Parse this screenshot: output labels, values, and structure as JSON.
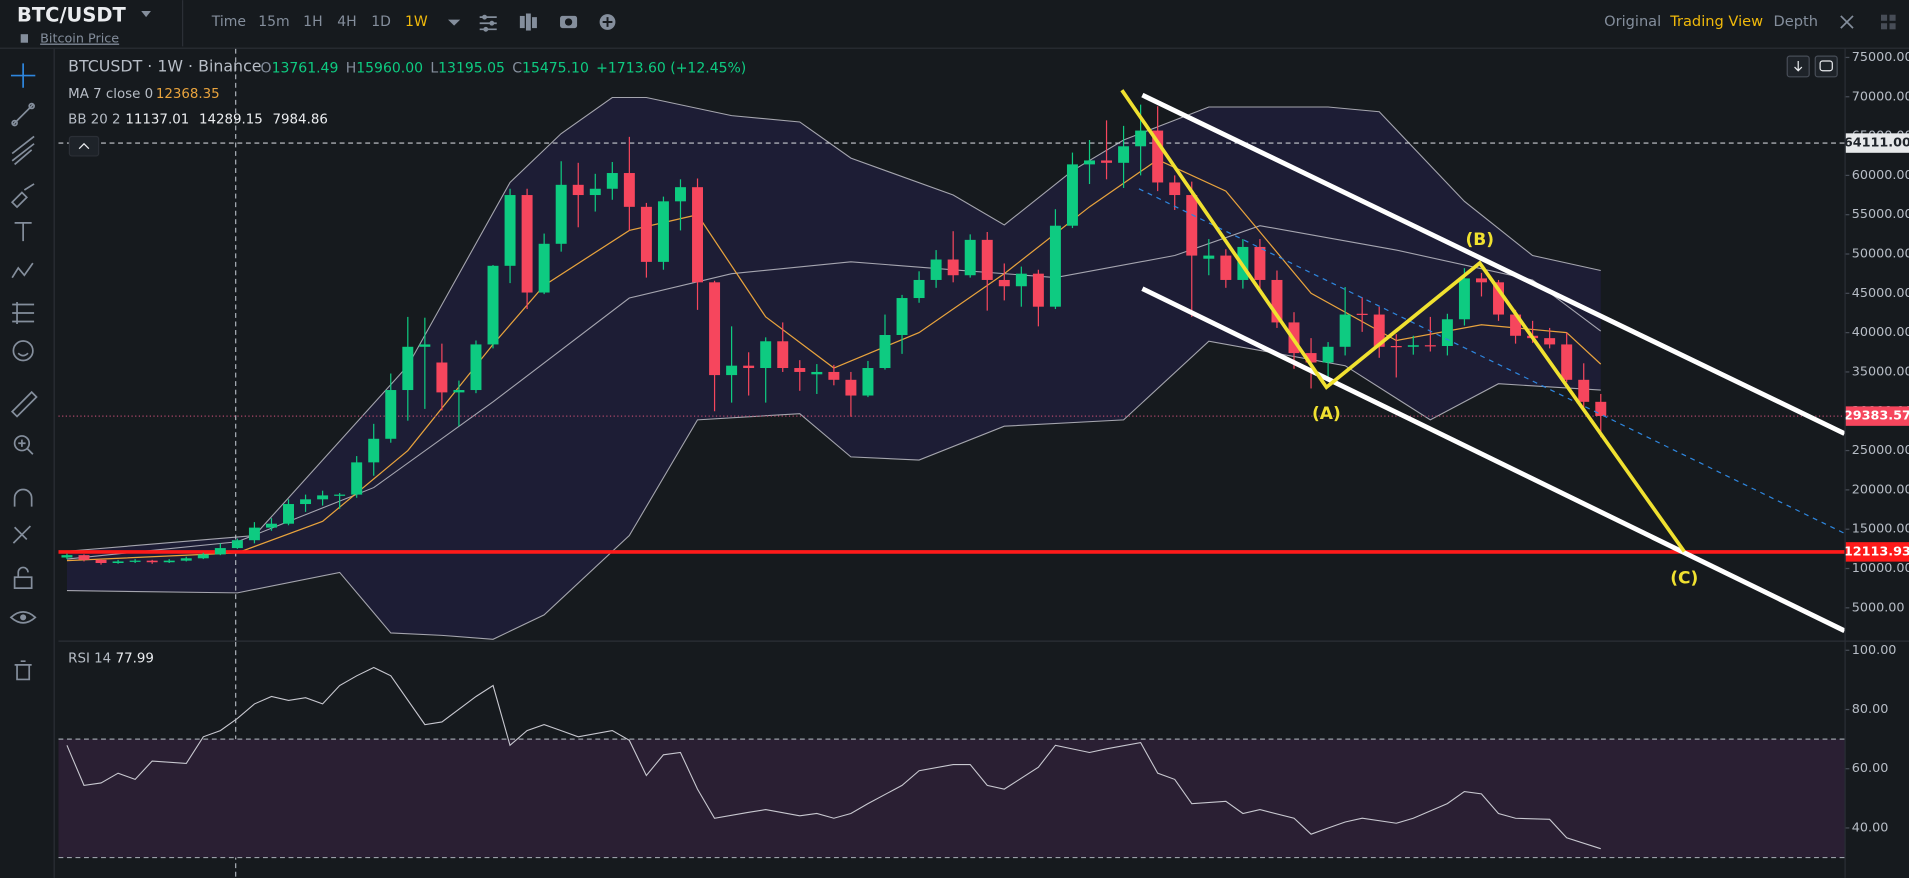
{
  "toolbar": {
    "symbol": "BTC/USDT",
    "subtitle": "Bitcoin Price",
    "intervals": [
      "Time",
      "15m",
      "1H",
      "4H",
      "1D",
      "1W"
    ],
    "active_interval": 5,
    "views": [
      "Original",
      "Trading View",
      "Depth"
    ],
    "active_view": 1
  },
  "legend": {
    "title": "BTCUSDT · 1W · Binance",
    "ohlc": [
      {
        "key": "O",
        "value": "13761.49"
      },
      {
        "key": "H",
        "value": "15960.00"
      },
      {
        "key": "L",
        "value": "13195.05"
      },
      {
        "key": "C",
        "value": "15475.10"
      }
    ],
    "change": "+1713.60 (+12.45%)",
    "ma_label": "MA 7 close 0",
    "ma_value": "12368.35",
    "bb_label": "BB 20 2",
    "bb_values": [
      "11137.01",
      "14289.15",
      "7984.86"
    ]
  },
  "chart_data": {
    "type": "candlestick",
    "up_color": "#0ecb81",
    "down_color": "#f6465d",
    "xlim": [
      -0.5,
      104.3
    ],
    "ylim": [
      1000,
      76100
    ],
    "yticks": [
      {
        "value": 5000,
        "label": "5000.00"
      },
      {
        "value": 10000,
        "label": "10000.00"
      },
      {
        "value": 15000,
        "label": "15000.00"
      },
      {
        "value": 20000,
        "label": "20000.00"
      },
      {
        "value": 25000,
        "label": "25000.00"
      },
      {
        "value": 30000,
        "label": "30000.00"
      },
      {
        "value": 35000,
        "label": "35000.00"
      },
      {
        "value": 40000,
        "label": "40000.00"
      },
      {
        "value": 45000,
        "label": "45000.00"
      },
      {
        "value": 50000,
        "label": "50000.00"
      },
      {
        "value": 55000,
        "label": "55000.00"
      },
      {
        "value": 60000,
        "label": "60000.00"
      },
      {
        "value": 65000,
        "label": "65000.00"
      },
      {
        "value": 70000,
        "label": "70000.00"
      },
      {
        "value": 75000,
        "label": "75000.00"
      }
    ],
    "x": [
      0,
      1,
      2,
      3,
      4,
      5,
      6,
      7,
      8,
      9,
      10,
      11,
      12,
      13,
      14,
      15,
      16,
      17,
      18,
      19,
      20,
      21,
      22,
      23,
      24,
      25,
      26,
      27,
      28,
      29,
      30,
      31,
      32,
      33,
      34,
      35,
      36,
      37,
      38,
      39,
      40,
      41,
      42,
      43,
      44,
      45,
      46,
      47,
      48,
      49,
      50,
      51,
      52,
      53,
      54,
      55,
      56,
      57,
      58,
      59,
      60,
      61,
      62,
      63,
      64,
      65,
      66,
      67,
      68,
      69,
      70,
      71,
      72,
      73,
      74,
      75,
      76,
      77,
      78,
      79,
      80,
      81,
      82,
      83,
      84,
      85,
      86,
      87,
      88,
      89,
      90
    ],
    "candles": [
      [
        11400,
        11900,
        11200,
        11700
      ],
      [
        11700,
        11800,
        10900,
        11100
      ],
      [
        11100,
        11200,
        10500,
        10700
      ],
      [
        10700,
        11100,
        10600,
        10900
      ],
      [
        10900,
        11200,
        10700,
        11000
      ],
      [
        11000,
        11100,
        10600,
        10800
      ],
      [
        10800,
        11200,
        10700,
        11000
      ],
      [
        11000,
        11500,
        10900,
        11300
      ],
      [
        11300,
        12000,
        11200,
        11800
      ],
      [
        11800,
        13200,
        11700,
        12600
      ],
      [
        12600,
        13800,
        12500,
        13600
      ],
      [
        13600,
        15900,
        13200,
        15200
      ],
      [
        15200,
        16400,
        14800,
        15700
      ],
      [
        15700,
        18800,
        15500,
        18200
      ],
      [
        18200,
        19400,
        17200,
        18800
      ],
      [
        18800,
        19900,
        18000,
        19300
      ],
      [
        19300,
        19600,
        17600,
        19400
      ],
      [
        19400,
        24300,
        19000,
        23500
      ],
      [
        23500,
        28400,
        21800,
        26500
      ],
      [
        26500,
        34800,
        26000,
        32700
      ],
      [
        32700,
        42000,
        28800,
        38200
      ],
      [
        38200,
        41900,
        30300,
        38500
      ],
      [
        36200,
        38600,
        30100,
        32400
      ],
      [
        32400,
        33900,
        28100,
        32700
      ],
      [
        32700,
        39000,
        32300,
        38500
      ],
      [
        38500,
        48600,
        38000,
        48500
      ],
      [
        48500,
        58300,
        46300,
        57500
      ],
      [
        57500,
        58300,
        43000,
        45100
      ],
      [
        45100,
        52600,
        44900,
        51300
      ],
      [
        51300,
        61800,
        50300,
        58800
      ],
      [
        58800,
        61600,
        53400,
        57500
      ],
      [
        57500,
        60200,
        55400,
        58300
      ],
      [
        58300,
        61700,
        56900,
        60300
      ],
      [
        60300,
        64900,
        53000,
        56000
      ],
      [
        56000,
        56500,
        47000,
        49000
      ],
      [
        49000,
        57300,
        48000,
        56700
      ],
      [
        56700,
        59500,
        53000,
        58500
      ],
      [
        58500,
        59600,
        42900,
        46400
      ],
      [
        46400,
        46600,
        30000,
        34600
      ],
      [
        34600,
        40800,
        31100,
        35800
      ],
      [
        35800,
        37500,
        32000,
        35500
      ],
      [
        35500,
        39400,
        31100,
        38900
      ],
      [
        38900,
        41300,
        35000,
        35500
      ],
      [
        35500,
        36500,
        32600,
        35000
      ],
      [
        34700,
        36000,
        32200,
        35000
      ],
      [
        35000,
        35900,
        33300,
        34000
      ],
      [
        34000,
        35000,
        29300,
        32000
      ],
      [
        32000,
        36400,
        31800,
        35500
      ],
      [
        35500,
        42300,
        35300,
        39700
      ],
      [
        39700,
        44800,
        37300,
        44400
      ],
      [
        44400,
        47800,
        43800,
        46700
      ],
      [
        46700,
        50500,
        45700,
        49300
      ],
      [
        49300,
        52900,
        46400,
        47300
      ],
      [
        47300,
        52500,
        47000,
        51800
      ],
      [
        51800,
        52800,
        42800,
        46700
      ],
      [
        46700,
        48800,
        44100,
        45900
      ],
      [
        45900,
        48400,
        43300,
        47500
      ],
      [
        47500,
        48000,
        40800,
        43300
      ],
      [
        43300,
        55700,
        43000,
        53600
      ],
      [
        53600,
        62900,
        53300,
        61400
      ],
      [
        61400,
        64500,
        58900,
        61900
      ],
      [
        61900,
        67000,
        59500,
        61600
      ],
      [
        61600,
        66300,
        58400,
        63700
      ],
      [
        63700,
        69000,
        60000,
        65700
      ],
      [
        65700,
        68800,
        58000,
        59100
      ],
      [
        59100,
        60000,
        55600,
        57500
      ],
      [
        57500,
        59200,
        42000,
        49800
      ],
      [
        49400,
        51900,
        47300,
        49800
      ],
      [
        49800,
        50600,
        45700,
        46700
      ],
      [
        46700,
        51900,
        45600,
        50900
      ],
      [
        50900,
        51900,
        45500,
        46700
      ],
      [
        46700,
        47900,
        40600,
        41300
      ],
      [
        41300,
        42600,
        35400,
        37400
      ],
      [
        37400,
        39300,
        32900,
        36200
      ],
      [
        36200,
        38800,
        34000,
        38200
      ],
      [
        38200,
        45800,
        37100,
        42300
      ],
      [
        42400,
        44500,
        40100,
        42300
      ],
      [
        42300,
        43300,
        36800,
        38200
      ],
      [
        38300,
        39800,
        34300,
        38200
      ],
      [
        38200,
        39600,
        37200,
        38400
      ],
      [
        38400,
        42000,
        37600,
        38300
      ],
      [
        38300,
        42400,
        37100,
        41700
      ],
      [
        41700,
        48200,
        40900,
        46900
      ],
      [
        46900,
        47600,
        44600,
        46400
      ],
      [
        46400,
        46700,
        41500,
        42300
      ],
      [
        42300,
        42900,
        38600,
        39600
      ],
      [
        39600,
        41500,
        38700,
        39300
      ],
      [
        39300,
        40600,
        38000,
        38500
      ],
      [
        38500,
        40000,
        33700,
        34000
      ],
      [
        34000,
        36100,
        30000,
        31200
      ],
      [
        31200,
        32200,
        26700,
        29400
      ]
    ],
    "ma": {
      "color": "#e8a33d",
      "x": [
        0,
        10,
        15,
        20,
        25,
        28,
        33,
        37,
        41,
        45,
        50,
        55,
        60,
        64,
        68,
        73,
        78,
        83,
        88,
        90
      ],
      "values": [
        11000,
        12000,
        16000,
        25000,
        38500,
        46000,
        53000,
        55000,
        42000,
        35500,
        40000,
        47500,
        56000,
        62000,
        58000,
        45000,
        39000,
        41000,
        40000,
        36000
      ]
    },
    "bb": {
      "color": "#c8c8d0",
      "fill": "#1e1f3a",
      "upper": {
        "x": [
          0,
          11,
          20,
          26,
          29,
          32,
          34,
          39,
          43,
          46,
          52,
          55,
          59,
          62,
          67,
          74,
          77,
          82,
          86,
          90
        ],
        "values": [
          12200,
          14200,
          35800,
          59100,
          65300,
          69900,
          69900,
          67600,
          66800,
          62200,
          57500,
          53700,
          60600,
          64500,
          68700,
          68700,
          68100,
          56700,
          49800,
          47900
        ]
      },
      "middle": {
        "x": [
          0,
          10,
          18,
          25,
          33,
          39,
          46,
          52,
          58,
          65,
          70,
          78,
          86,
          90
        ],
        "values": [
          11200,
          13400,
          20300,
          31200,
          44400,
          47500,
          49000,
          48000,
          47000,
          49800,
          53600,
          50500,
          46700,
          40200
        ]
      },
      "lower": {
        "x": [
          0,
          10,
          16,
          19,
          22,
          25,
          28,
          33,
          37,
          43,
          46,
          50,
          55,
          62,
          67,
          75,
          80,
          84,
          90
        ],
        "values": [
          7200,
          6900,
          9500,
          1800,
          1500,
          1000,
          4100,
          14200,
          28900,
          29700,
          24200,
          23800,
          28100,
          28900,
          38900,
          35800,
          28900,
          33500,
          32700
        ]
      }
    },
    "price_lines": [
      {
        "value": 64111,
        "label": "64111.00",
        "color": "#c9ccd1",
        "dash": "4 3",
        "width": 1,
        "box": "#e6e8ea",
        "text": "#1e2329"
      },
      {
        "value": 29383.57,
        "label": "29383.57",
        "color": "#b0486a",
        "dash": "1 2",
        "width": 1,
        "box": "#f6465d",
        "text": "#ffffff"
      },
      {
        "value": 12113.93,
        "label": "12113.93",
        "color": "#ff1a1a",
        "dash": "none",
        "width": 3,
        "box": "#ff1a1a",
        "text": "#ffffff"
      }
    ],
    "crosshair_x": 9.9,
    "trend_lines": [
      {
        "color": "#ffffff",
        "width": 4,
        "dash": "none",
        "x": [
          63.1,
          104.3
        ],
        "y": [
          70220,
          27170
        ]
      },
      {
        "color": "#ffffff",
        "width": 4,
        "dash": "none",
        "x": [
          63.1,
          104.3
        ],
        "y": [
          45600,
          2080
        ]
      },
      {
        "color": "#2e86de",
        "width": 1,
        "dash": "4 4",
        "x": [
          62.9,
          104.3
        ],
        "y": [
          58290,
          14470
        ]
      }
    ],
    "waves": {
      "color": "#f0e130",
      "x": [
        61.9,
        73.9,
        82.9,
        94.9
      ],
      "y": [
        70835,
        33050,
        48850,
        12150
      ],
      "labels": [
        null,
        "(A)",
        "(B)",
        "(C)"
      ]
    },
    "rsi": {
      "label": "RSI 14",
      "value": "77.99",
      "color": "#c8c8d0",
      "ylim": [
        25.6,
        102.9
      ],
      "levels": [
        70,
        30
      ],
      "band_color": "#2a1f33",
      "yticks": [
        {
          "value": 40,
          "label": "40.00"
        },
        {
          "value": 60,
          "label": "60.00"
        },
        {
          "value": 80,
          "label": "80.00"
        },
        {
          "value": 100,
          "label": "100.00"
        }
      ],
      "x": [
        0,
        1,
        2,
        3,
        4,
        5,
        7,
        8,
        9,
        10,
        11,
        12,
        13,
        14,
        15,
        16,
        17,
        18,
        19,
        21,
        22,
        24,
        25,
        26,
        27,
        28,
        29,
        30,
        32,
        33,
        34,
        35,
        36,
        37,
        38,
        40,
        41,
        43,
        44,
        45,
        46,
        47,
        49,
        50,
        52,
        53,
        54,
        55,
        57,
        58,
        60,
        61,
        63,
        64,
        65,
        66,
        68,
        69,
        70,
        72,
        73,
        74,
        75,
        76,
        78,
        79,
        81,
        82,
        83,
        84,
        85,
        87,
        88,
        90
      ],
      "values": [
        67.9,
        54.4,
        55.2,
        58.5,
        56.4,
        62.6,
        61.8,
        70.8,
        72.9,
        77,
        81.9,
        84.4,
        83.1,
        84,
        81.9,
        88.1,
        91.4,
        94.2,
        91.4,
        74.9,
        75.8,
        84.4,
        88.1,
        67.9,
        72.9,
        74.9,
        72.9,
        70.8,
        72.9,
        69.6,
        57.7,
        64.7,
        65.5,
        53.1,
        43.3,
        45.3,
        46.2,
        44.1,
        44.9,
        43.3,
        44.9,
        48.2,
        54.4,
        59.3,
        61.4,
        61.4,
        54.4,
        53.1,
        60.5,
        67.9,
        65.5,
        66.7,
        68.8,
        58.5,
        56.4,
        48.2,
        49,
        44.9,
        46.2,
        43.3,
        37.9,
        40,
        42,
        43.3,
        41.6,
        43.3,
        48.2,
        52.3,
        51.5,
        44.9,
        43.3,
        42.9,
        36.7,
        33
      ]
    }
  }
}
